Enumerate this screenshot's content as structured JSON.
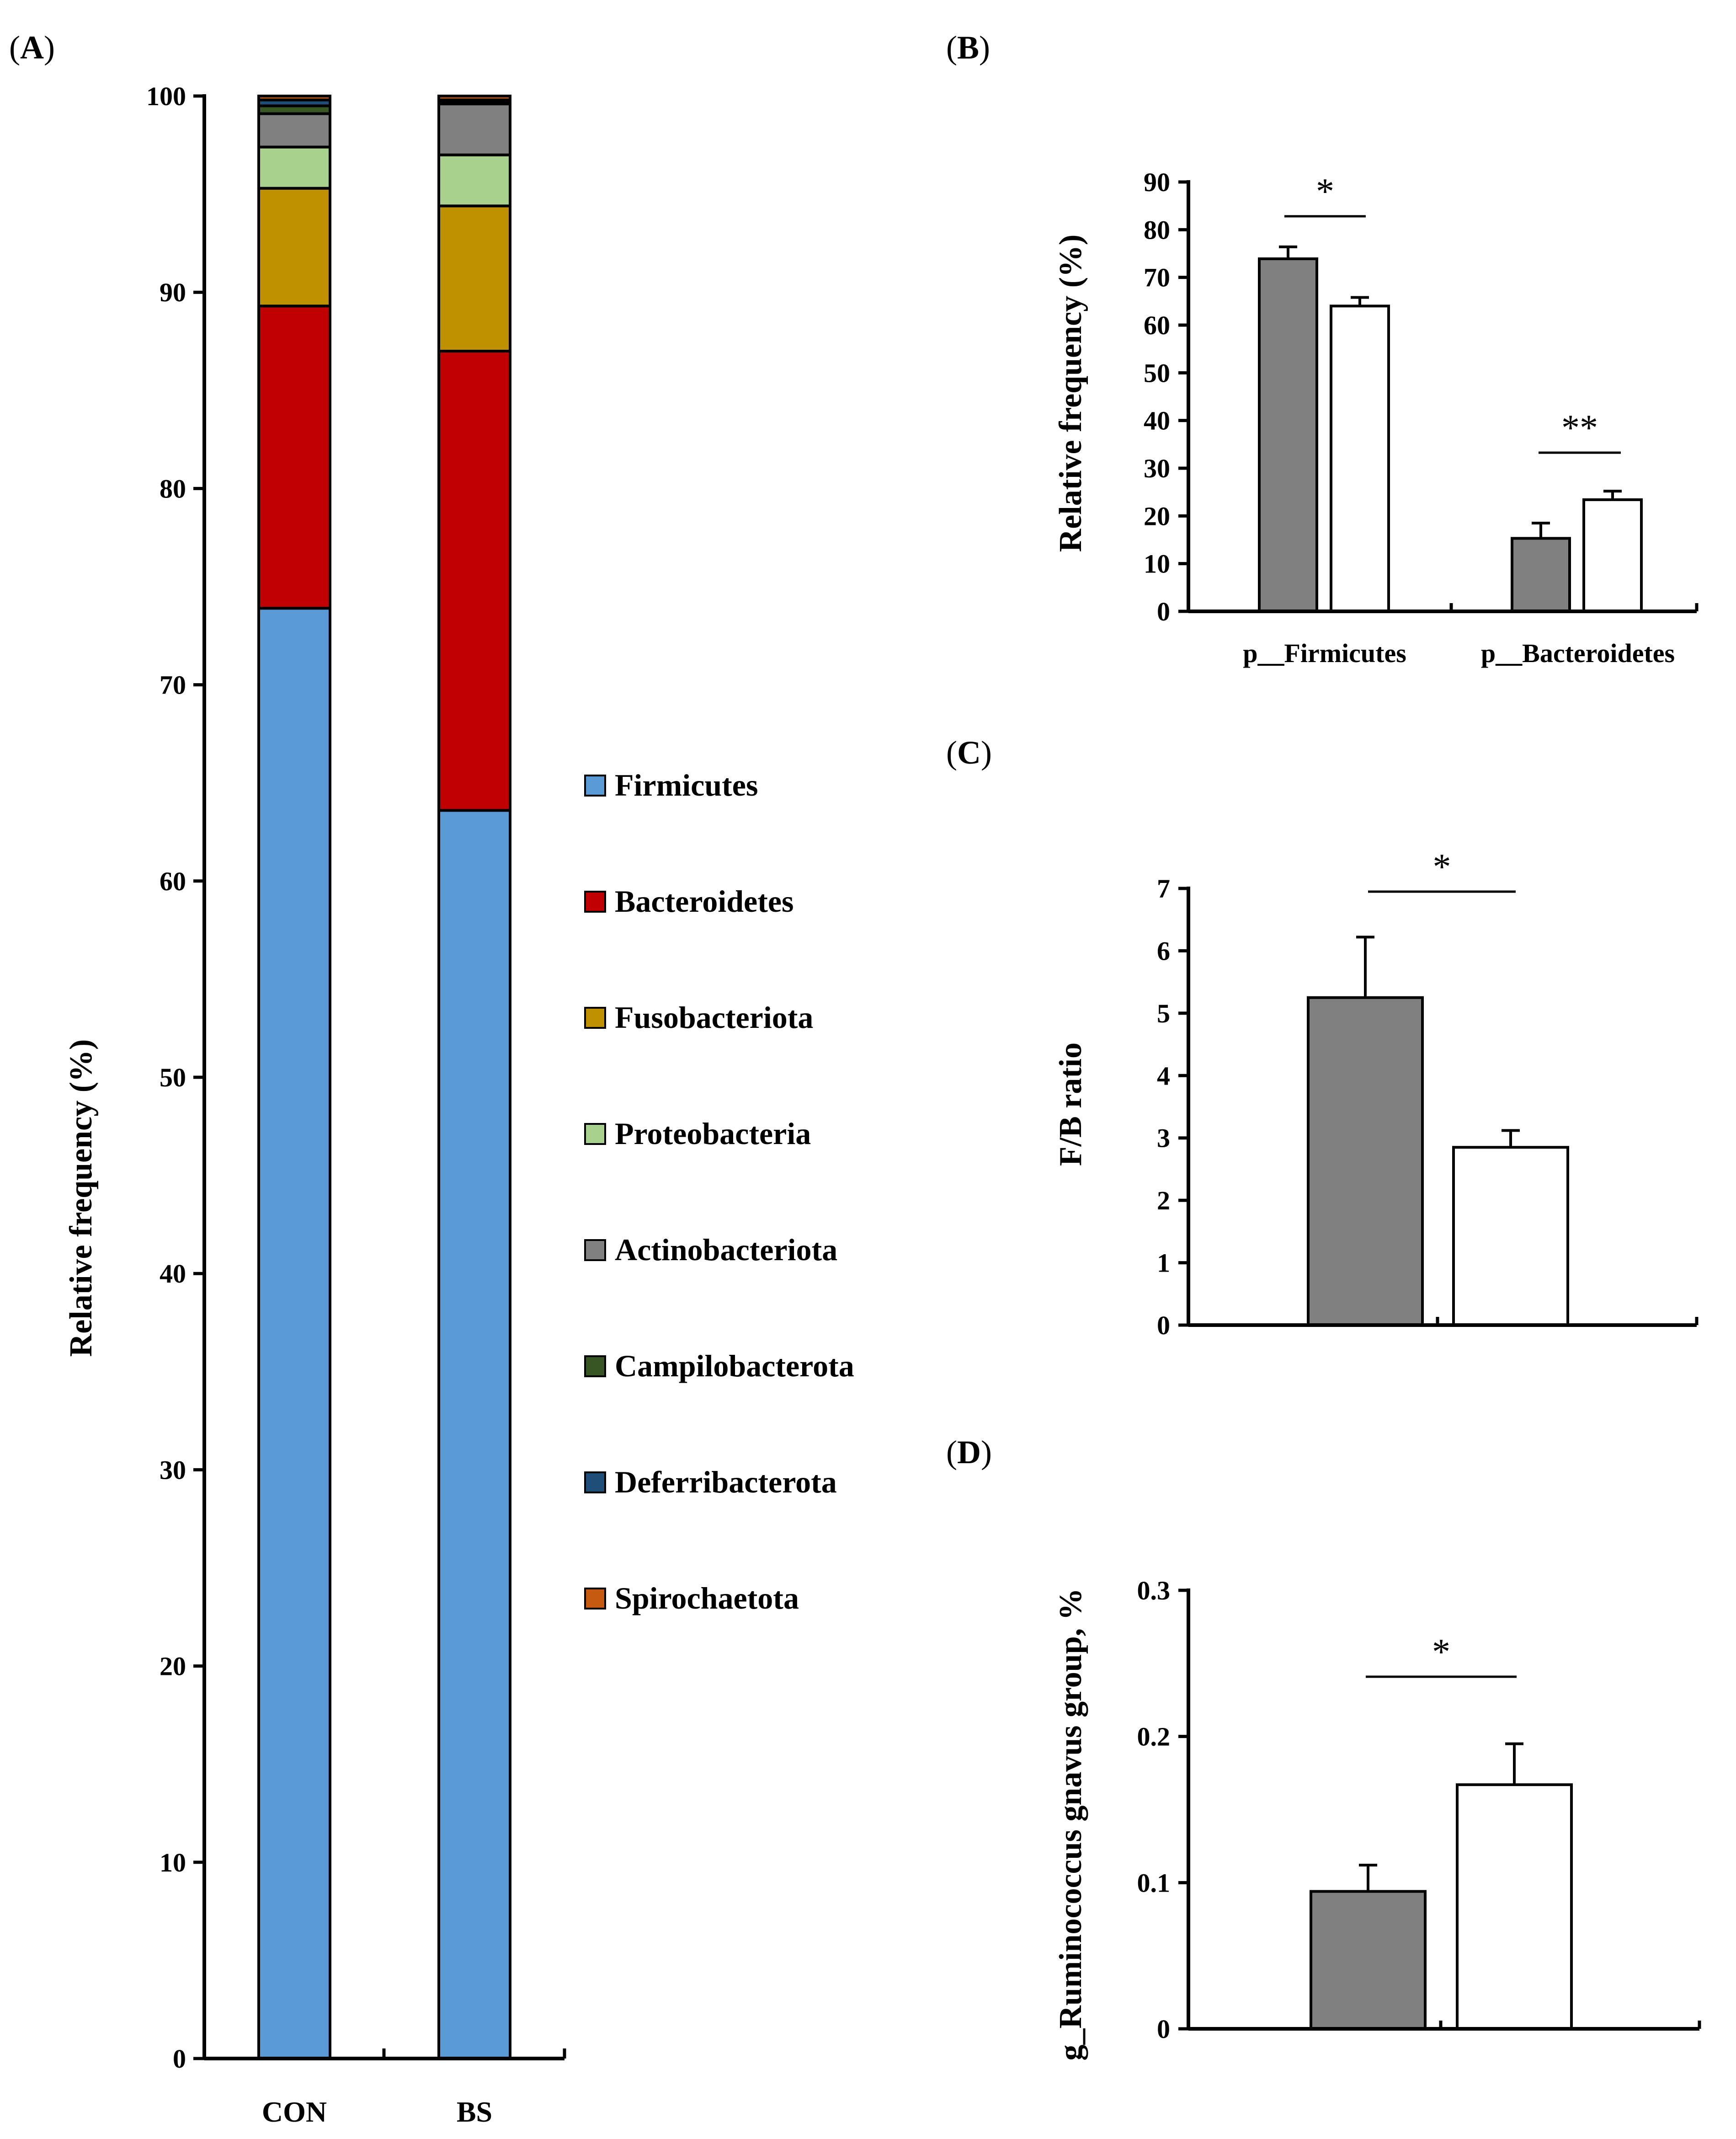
{
  "chart_data": [
    {
      "panel": "A",
      "type": "bar",
      "stacked": true,
      "panel_label": "A",
      "ylabel": "Relative frequency (%)",
      "ylim": [
        0,
        100
      ],
      "yticks": [
        0,
        10,
        20,
        30,
        40,
        50,
        60,
        70,
        80,
        90,
        100
      ],
      "categories": [
        "CON",
        "BS"
      ],
      "legend_position": "right",
      "series": [
        {
          "name": "Firmicutes",
          "color": "#5b9bd5",
          "values": [
            73.9,
            63.6
          ]
        },
        {
          "name": "Bacteroidetes",
          "color": "#c00000",
          "values": [
            15.4,
            23.4
          ]
        },
        {
          "name": "Fusobacteriota",
          "color": "#bf9000",
          "values": [
            6.0,
            7.4
          ]
        },
        {
          "name": "Proteobacteria",
          "color": "#a9d18e",
          "values": [
            2.1,
            2.6
          ]
        },
        {
          "name": "Actinobacteriota",
          "color": "#808080",
          "values": [
            1.7,
            2.6
          ]
        },
        {
          "name": "Campilobacterota",
          "color": "#375623",
          "values": [
            0.4,
            0.1
          ]
        },
        {
          "name": "Deferribacterota",
          "color": "#1f4e79",
          "values": [
            0.3,
            0.1
          ]
        },
        {
          "name": "Spirochaetota",
          "color": "#c55a11",
          "values": [
            0.2,
            0.2
          ]
        }
      ]
    },
    {
      "panel": "B",
      "type": "bar",
      "panel_label": "B",
      "ylabel": "Relative frequency (%)",
      "ylim": [
        0,
        90
      ],
      "yticks": [
        0,
        10,
        20,
        30,
        40,
        50,
        60,
        70,
        80,
        90
      ],
      "categories": [
        "p__Firmicutes",
        "p__Bacteroidetes"
      ],
      "series": [
        {
          "name": "CON",
          "color": "#808080",
          "values": [
            73.9,
            15.3
          ],
          "errors": [
            2.5,
            3.2
          ]
        },
        {
          "name": "BS",
          "color": "#ffffff",
          "values": [
            64.0,
            23.4
          ],
          "errors": [
            1.8,
            1.8
          ]
        }
      ],
      "significance": [
        "*",
        "**"
      ]
    },
    {
      "panel": "C",
      "type": "bar",
      "panel_label": "C",
      "ylabel": "F/B ratio",
      "ylim": [
        0,
        7
      ],
      "yticks": [
        0,
        1,
        2,
        3,
        4,
        5,
        6,
        7
      ],
      "series": [
        {
          "name": "CON",
          "color": "#808080",
          "values": [
            5.25
          ],
          "errors": [
            0.97
          ]
        },
        {
          "name": "BS",
          "color": "#ffffff",
          "values": [
            2.85
          ],
          "errors": [
            0.27
          ]
        }
      ],
      "significance": [
        "*"
      ]
    },
    {
      "panel": "D",
      "type": "bar",
      "panel_label": "D",
      "ylabel": "g_Ruminococcus gnavus group, %",
      "ylim": [
        0,
        0.3
      ],
      "yticks": [
        "0",
        "0.1",
        "0.2",
        "0.3"
      ],
      "series": [
        {
          "name": "CON",
          "color": "#808080",
          "values": [
            0.094
          ],
          "errors": [
            0.018
          ]
        },
        {
          "name": "BS",
          "color": "#ffffff",
          "values": [
            0.167
          ],
          "errors": [
            0.028
          ]
        }
      ],
      "significance": [
        "*"
      ]
    }
  ]
}
